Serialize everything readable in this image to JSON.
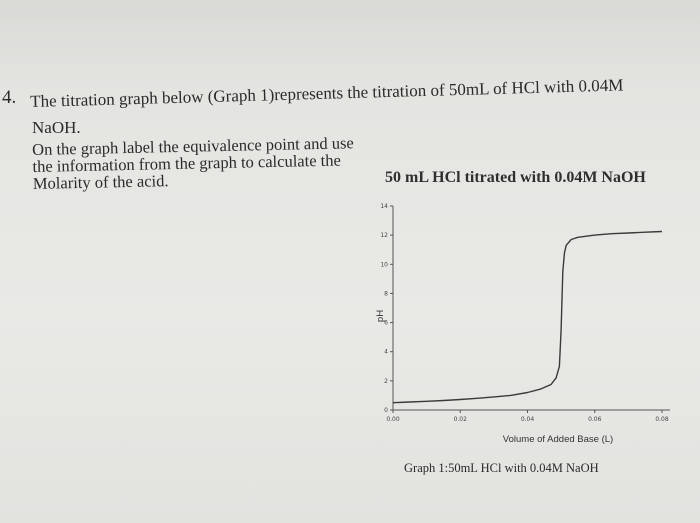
{
  "question": {
    "number": "4.",
    "line1": "The titration graph below (Graph 1)represents the titration of 50mL of HCl with 0.04M",
    "line2": "NaOH.",
    "instruction": "On the graph label the equivalence point and use the information from the graph to calculate the Molarity of the acid."
  },
  "graph": {
    "title": "50 mL HCl titrated with 0.04M NaOH",
    "caption": "Graph 1:50mL HCl with 0.04M NaOH"
  },
  "chart_data": {
    "type": "line",
    "title": "50 mL HCl titrated with 0.04M NaOH",
    "xlabel": "Volume of Added Base (L)",
    "ylabel": "pH",
    "xlim": [
      0,
      0.08
    ],
    "ylim": [
      0,
      14
    ],
    "x_ticks": [
      "0.00",
      "0.02",
      "0.04",
      "0.06",
      "0.08"
    ],
    "y_ticks": [
      "0",
      "2",
      "4",
      "6",
      "8",
      "10",
      "12",
      "14"
    ],
    "series": [
      {
        "x": [
          0.0,
          0.005,
          0.01,
          0.015,
          0.02,
          0.025,
          0.03,
          0.035,
          0.04,
          0.044,
          0.047,
          0.0485,
          0.0495,
          0.05,
          0.0505,
          0.051,
          0.0515,
          0.053,
          0.055,
          0.06,
          0.065,
          0.07,
          0.075,
          0.08
        ],
        "y": [
          0.5,
          0.55,
          0.6,
          0.65,
          0.72,
          0.8,
          0.9,
          1.0,
          1.2,
          1.45,
          1.75,
          2.2,
          3.0,
          5.5,
          9.5,
          10.8,
          11.3,
          11.7,
          11.85,
          12.0,
          12.1,
          12.15,
          12.2,
          12.25
        ]
      }
    ]
  }
}
